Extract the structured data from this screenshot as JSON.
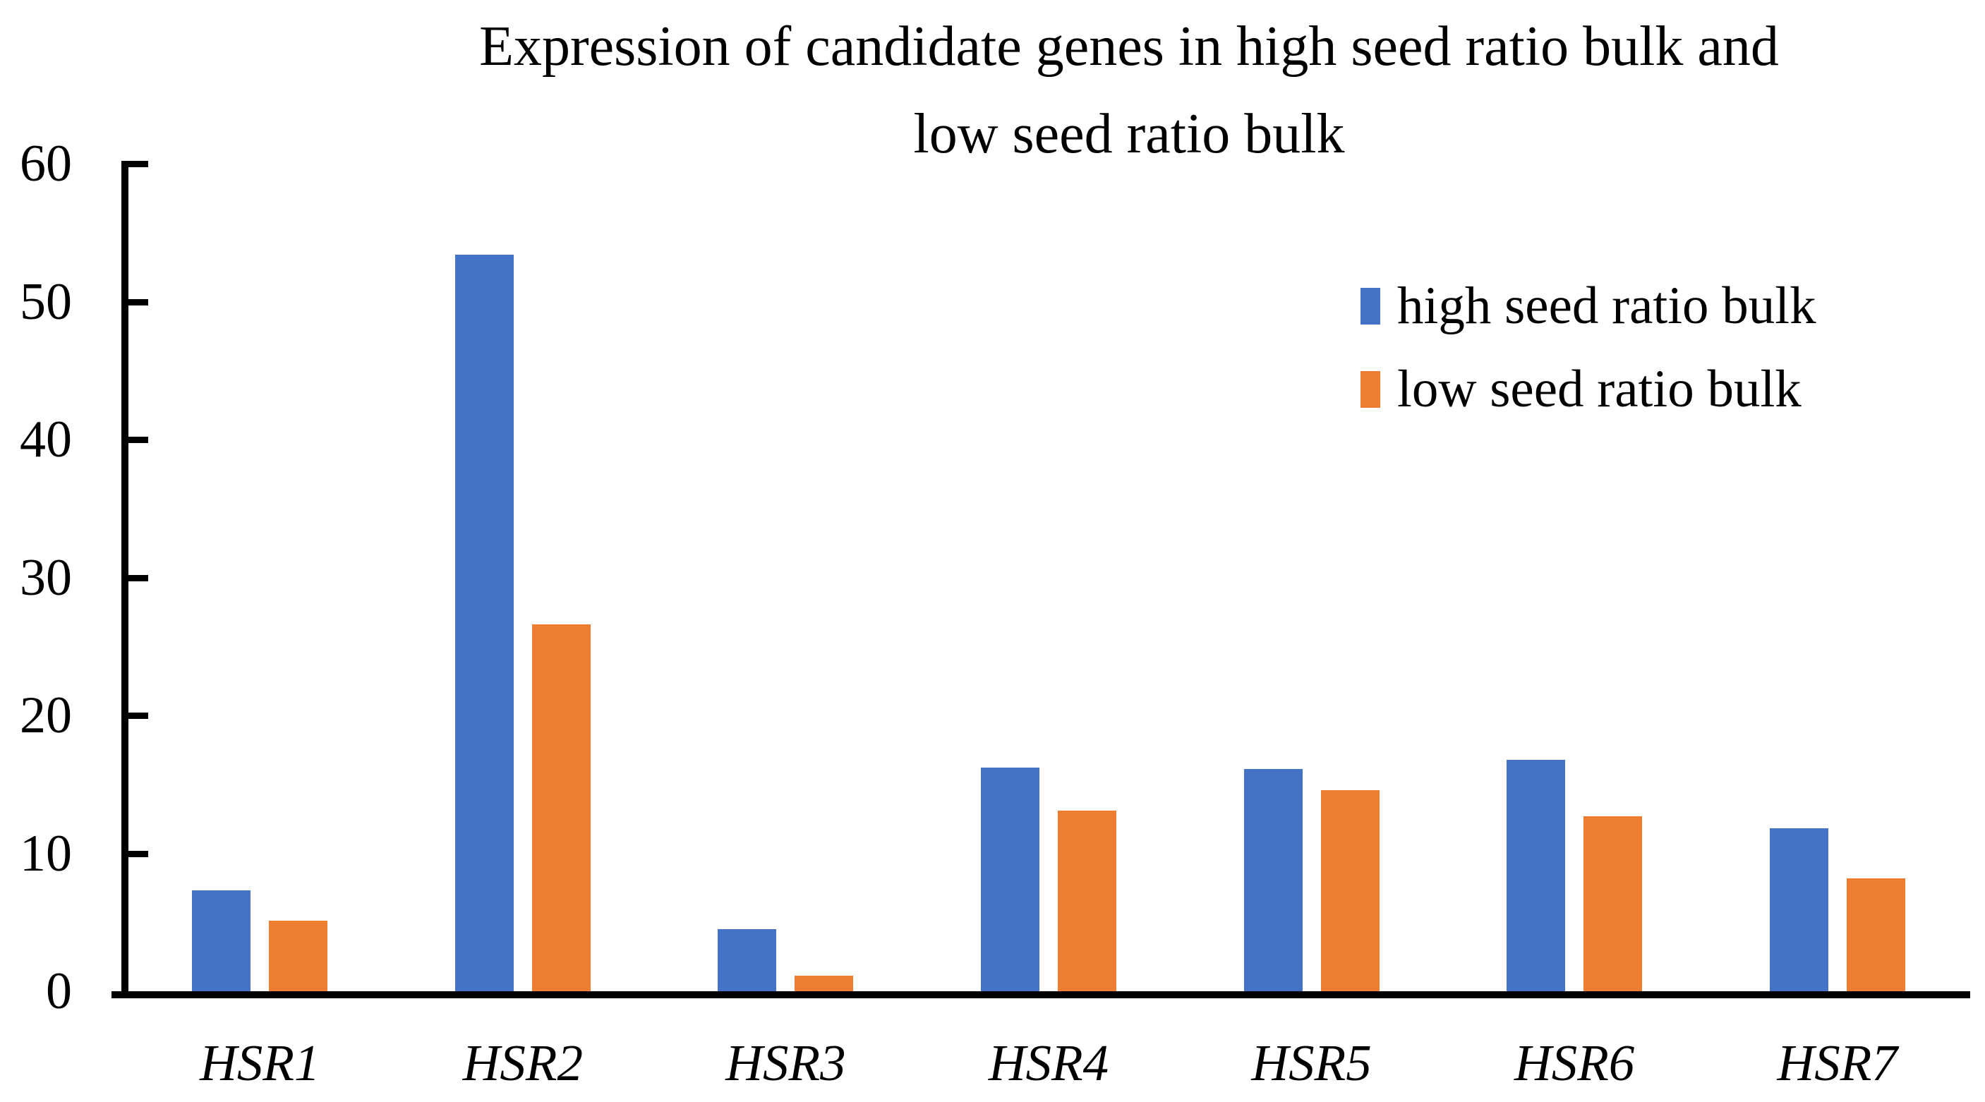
{
  "chart_data": {
    "type": "bar",
    "title": "Expression of candidate genes in high seed ratio bulk and low seed ratio bulk",
    "title_lines": [
      "Expression of candidate genes in high seed ratio bulk and",
      "low seed ratio bulk"
    ],
    "categories": [
      "HSR1",
      "HSR2",
      "HSR3",
      "HSR4",
      "HSR5",
      "HSR6",
      "HSR7"
    ],
    "series": [
      {
        "name": "high seed ratio bulk",
        "color": "#4472C4",
        "values": [
          7.3,
          53.4,
          4.5,
          16.2,
          16.1,
          16.8,
          11.8
        ]
      },
      {
        "name": "low seed ratio bulk",
        "color": "#ED7D31",
        "values": [
          5.1,
          26.6,
          1.1,
          13.1,
          14.6,
          12.7,
          8.2
        ]
      }
    ],
    "xlabel": "",
    "ylabel": "",
    "ylim": [
      0,
      60
    ],
    "yticks": [
      0,
      10,
      20,
      30,
      40,
      50,
      60
    ],
    "grid": false,
    "legend_position": "upper-right",
    "category_label_style": "italic",
    "axis_color": "#000000",
    "background_color": "#FFFFFF"
  }
}
